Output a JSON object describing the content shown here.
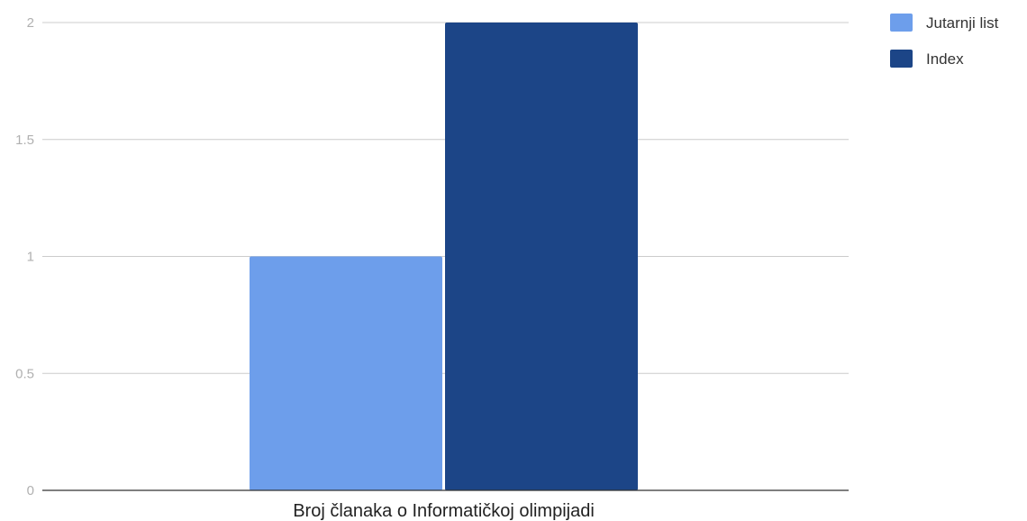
{
  "chart_data": {
    "type": "bar",
    "title": "",
    "xlabel": "",
    "ylabel": "",
    "categories": [
      "Broj članaka o Informatičkoj olimpijadi"
    ],
    "series": [
      {
        "name": "Jutarnji list",
        "values": [
          1
        ],
        "color": "#6d9eeb"
      },
      {
        "name": "Index",
        "values": [
          2
        ],
        "color": "#1c4587"
      }
    ],
    "ylim": [
      0,
      2
    ],
    "yticks": [
      0,
      0.5,
      1,
      1.5,
      2
    ],
    "ytick_labels": [
      "0",
      "0.5",
      "1",
      "1.5",
      "2"
    ],
    "grid": true,
    "legend_position": "top-right"
  }
}
